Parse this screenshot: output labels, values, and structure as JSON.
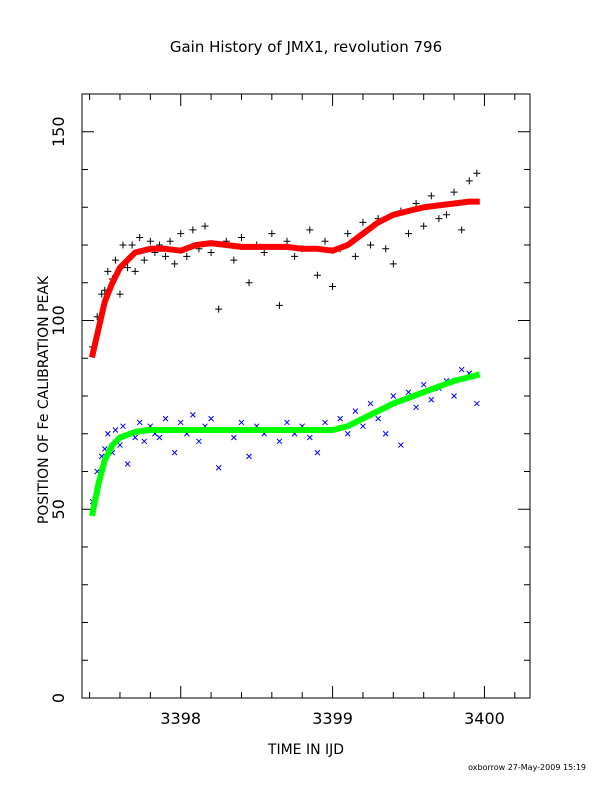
{
  "chart_data": {
    "type": "scatter",
    "title": "Gain History of JMX1, revolution 796",
    "xlabel": "TIME IN IJD",
    "ylabel": "POSITION OF Fe CALIBRATION PEAK",
    "xlim": [
      3397.35,
      3400.3
    ],
    "ylim": [
      0,
      160
    ],
    "x_ticks": [
      "3398",
      "3399",
      "3400"
    ],
    "y_ticks": [
      "0",
      "50",
      "100",
      "150"
    ],
    "grid": false,
    "legend": "none",
    "series": [
      {
        "marker": "plus",
        "color": "#000000",
        "fit": {
          "color": "#ff0000",
          "x": [
            3397.42,
            3397.46,
            3397.5,
            3397.55,
            3397.6,
            3397.7,
            3397.8,
            3397.9,
            3398.0,
            3398.1,
            3398.2,
            3398.3,
            3398.4,
            3398.5,
            3398.6,
            3398.7,
            3398.8,
            3398.9,
            3399.0,
            3399.1,
            3399.2,
            3399.3,
            3399.4,
            3399.5,
            3399.6,
            3399.7,
            3399.8,
            3399.9,
            3399.95
          ],
          "y": [
            91,
            98,
            105,
            110,
            114,
            118,
            119,
            119,
            118.5,
            120,
            120.5,
            120,
            119.5,
            119.5,
            119.5,
            119.5,
            119,
            119,
            118.5,
            120,
            123,
            126,
            128,
            129,
            130,
            130.5,
            131,
            131.5,
            131.5
          ]
        },
        "points": {
          "x": [
            3397.42,
            3397.45,
            3397.48,
            3397.5,
            3397.52,
            3397.55,
            3397.57,
            3397.6,
            3397.62,
            3397.65,
            3397.68,
            3397.7,
            3397.73,
            3397.76,
            3397.8,
            3397.83,
            3397.86,
            3397.9,
            3397.93,
            3397.96,
            3398.0,
            3398.04,
            3398.08,
            3398.12,
            3398.16,
            3398.2,
            3398.25,
            3398.3,
            3398.35,
            3398.4,
            3398.45,
            3398.5,
            3398.55,
            3398.6,
            3398.65,
            3398.7,
            3398.75,
            3398.8,
            3398.85,
            3398.9,
            3398.95,
            3399.0,
            3399.05,
            3399.1,
            3399.15,
            3399.2,
            3399.25,
            3399.3,
            3399.35,
            3399.4,
            3399.45,
            3399.5,
            3399.55,
            3399.6,
            3399.65,
            3399.7,
            3399.75,
            3399.8,
            3399.85,
            3399.9,
            3399.95
          ],
          "y": [
            93,
            101,
            107,
            108,
            113,
            111,
            116,
            107,
            120,
            114,
            120,
            113,
            122,
            116,
            121,
            118,
            120,
            117,
            121,
            115,
            123,
            117,
            124,
            119,
            125,
            118,
            103,
            121,
            116,
            122,
            110,
            120,
            118,
            123,
            104,
            121,
            117,
            119,
            124,
            112,
            121,
            109,
            119,
            123,
            117,
            126,
            120,
            127,
            119,
            115,
            129,
            123,
            131,
            125,
            133,
            127,
            128,
            134,
            124,
            137,
            139
          ]
        }
      },
      {
        "marker": "cross",
        "color": "#0000ff",
        "fit": {
          "color": "#00ff00",
          "x": [
            3397.42,
            3397.46,
            3397.5,
            3397.55,
            3397.6,
            3397.7,
            3397.8,
            3397.9,
            3398.0,
            3398.1,
            3398.2,
            3398.3,
            3398.4,
            3398.5,
            3398.6,
            3398.7,
            3398.8,
            3398.9,
            3399.0,
            3399.1,
            3399.2,
            3399.3,
            3399.4,
            3399.5,
            3399.6,
            3399.7,
            3399.8,
            3399.9,
            3399.95
          ],
          "y": [
            49,
            57,
            63,
            67,
            69,
            70.5,
            71,
            71,
            71,
            71,
            71,
            71,
            71,
            71,
            71,
            71,
            71,
            71,
            71,
            72,
            74,
            76,
            78,
            79.5,
            81,
            82.5,
            84,
            85,
            85.5
          ]
        },
        "points": {
          "x": [
            3397.42,
            3397.45,
            3397.48,
            3397.5,
            3397.52,
            3397.55,
            3397.57,
            3397.6,
            3397.62,
            3397.65,
            3397.68,
            3397.7,
            3397.73,
            3397.76,
            3397.8,
            3397.83,
            3397.86,
            3397.9,
            3397.93,
            3397.96,
            3398.0,
            3398.04,
            3398.08,
            3398.12,
            3398.16,
            3398.2,
            3398.25,
            3398.3,
            3398.35,
            3398.4,
            3398.45,
            3398.5,
            3398.55,
            3398.6,
            3398.65,
            3398.7,
            3398.75,
            3398.8,
            3398.85,
            3398.9,
            3398.95,
            3399.0,
            3399.05,
            3399.1,
            3399.15,
            3399.2,
            3399.25,
            3399.3,
            3399.35,
            3399.4,
            3399.45,
            3399.5,
            3399.55,
            3399.6,
            3399.65,
            3399.7,
            3399.75,
            3399.8,
            3399.85,
            3399.9,
            3399.95
          ],
          "y": [
            52,
            60,
            64,
            66,
            70,
            65,
            71,
            67,
            72,
            62,
            70,
            69,
            73,
            68,
            72,
            70,
            69,
            74,
            71,
            65,
            73,
            70,
            75,
            68,
            72,
            74,
            61,
            71,
            69,
            73,
            64,
            72,
            70,
            71,
            68,
            73,
            70,
            72,
            69,
            65,
            73,
            71,
            74,
            70,
            76,
            72,
            78,
            74,
            70,
            80,
            67,
            81,
            77,
            83,
            79,
            82,
            84,
            80,
            87,
            86,
            78
          ]
        }
      }
    ]
  },
  "footer": "oxborrow 27-May-2009 15:19"
}
